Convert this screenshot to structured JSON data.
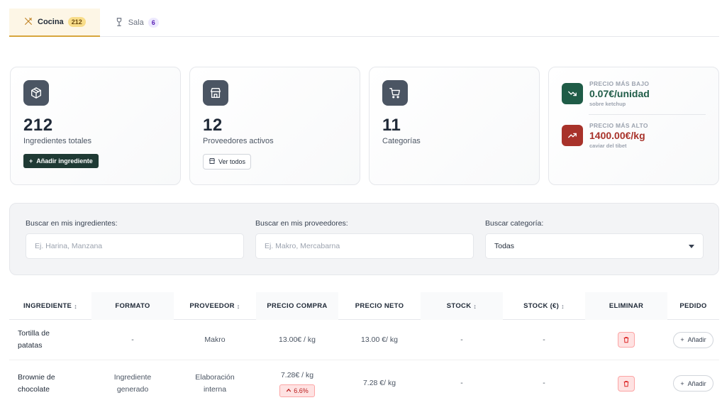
{
  "tabs": [
    {
      "label": "Cocina",
      "count": "212",
      "icon": "utensils-icon"
    },
    {
      "label": "Sala",
      "count": "6",
      "icon": "wine-glass-icon"
    }
  ],
  "stats": {
    "ingredients": {
      "value": "212",
      "label": "Ingredientes totales",
      "button": "Añadir ingrediente",
      "icon": "package-icon"
    },
    "suppliers": {
      "value": "12",
      "label": "Proveedores activos",
      "button": "Ver todos",
      "icon": "store-icon"
    },
    "categories": {
      "value": "11",
      "label": "Categorías",
      "icon": "cart-icon"
    }
  },
  "prices": {
    "lowest": {
      "title": "PRECIO MÁS BAJO",
      "value": "0.07€/unidad",
      "sub": "sobre ketchup",
      "color": "#1f5c47"
    },
    "highest": {
      "title": "PRECIO MÁS ALTO",
      "value": "1400.00€/kg",
      "sub": "caviar del tibet",
      "color": "#a8322a"
    }
  },
  "search": {
    "ingredients": {
      "label": "Buscar en mis ingredientes:",
      "placeholder": "Ej. Harina, Manzana"
    },
    "suppliers": {
      "label": "Buscar en mis proveedores:",
      "placeholder": "Ej. Makro, Mercabarna"
    },
    "category": {
      "label": "Buscar categoría:",
      "value": "Todas"
    }
  },
  "table": {
    "headers": [
      "INGREDIENTE",
      "FORMATO",
      "PROVEEDOR",
      "PRECIO COMPRA",
      "PRECIO NETO",
      "STOCK",
      "STOCK (€)",
      "ELIMINAR",
      "PEDIDO"
    ],
    "sort_glyph": "↕",
    "add_label": "Añadir",
    "rows": [
      {
        "name": "Tortilla de patatas",
        "format": "-",
        "supplier": "Makro",
        "purchase": "13.00€ / kg",
        "net": "13.00 €/ kg",
        "stock": "-",
        "stock_value": "-",
        "change": ""
      },
      {
        "name": "Brownie de chocolate",
        "format": "Ingrediente generado",
        "supplier": "Elaboración interna",
        "purchase": "7.28€ / kg",
        "net": "7.28 €/ kg",
        "stock": "-",
        "stock_value": "-",
        "change": "6.6%"
      }
    ]
  }
}
